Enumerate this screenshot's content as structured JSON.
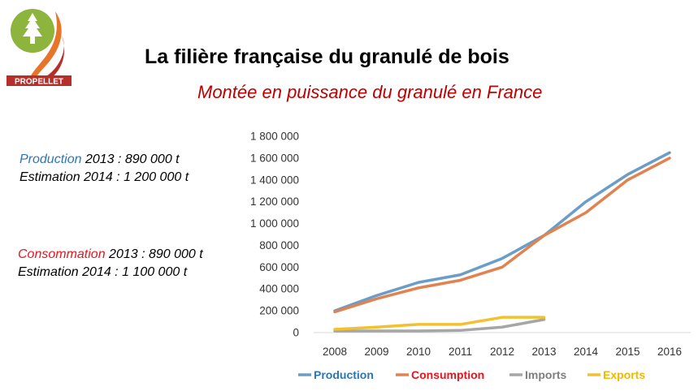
{
  "header": {
    "title": "La filière française du granulé de bois",
    "subtitle": "Montée en puissance du granulé en France",
    "logo_text": "PROPELLET"
  },
  "stats": {
    "production_label": "Production",
    "production_rest": " 2013 : 890 000 t",
    "production_estimate": "Estimation 2014 : 1 200 000 t",
    "consumption_label": "Consommation",
    "consumption_rest": " 2013 : 890 000 t",
    "consumption_estimate": "Estimation 2014 : 1 100 000 t"
  },
  "colors": {
    "title": "#000000",
    "subtitle": "#c00000",
    "production": "#6a9dc8",
    "consumption": "#e08350",
    "imports": "#a6a6a6",
    "exports": "#f2c12e",
    "logo_green": "#8db43c",
    "logo_orange": "#e8742a",
    "logo_red": "#b5302a"
  },
  "chart_data": {
    "type": "line",
    "x": [
      "2008",
      "2009",
      "2010",
      "2011",
      "2012",
      "2013",
      "2014",
      "2015",
      "2016"
    ],
    "ylim": [
      0,
      1800000
    ],
    "yticks": [
      0,
      200000,
      400000,
      600000,
      800000,
      1000000,
      1200000,
      1400000,
      1600000,
      1800000
    ],
    "ytick_labels": [
      "0",
      "200 000",
      "400 000",
      "600 000",
      "800 000",
      "1 000 000",
      "1 200 000",
      "1 400 000",
      "1 600 000",
      "1 800 000"
    ],
    "grid": false,
    "legend_position": "bottom",
    "series": [
      {
        "name": "Production",
        "color": "#6a9dc8",
        "values": [
          200000,
          340000,
          460000,
          530000,
          680000,
          890000,
          1200000,
          1450000,
          1650000
        ]
      },
      {
        "name": "Consumption",
        "color": "#e08350",
        "values": [
          190000,
          310000,
          410000,
          480000,
          600000,
          890000,
          1100000,
          1400000,
          1600000
        ]
      },
      {
        "name": "Imports",
        "color": "#a6a6a6",
        "values": [
          15000,
          15000,
          15000,
          20000,
          50000,
          120000,
          null,
          null,
          null
        ]
      },
      {
        "name": "Exports",
        "color": "#f2c12e",
        "values": [
          30000,
          50000,
          75000,
          75000,
          140000,
          140000,
          null,
          null,
          null
        ]
      }
    ]
  }
}
